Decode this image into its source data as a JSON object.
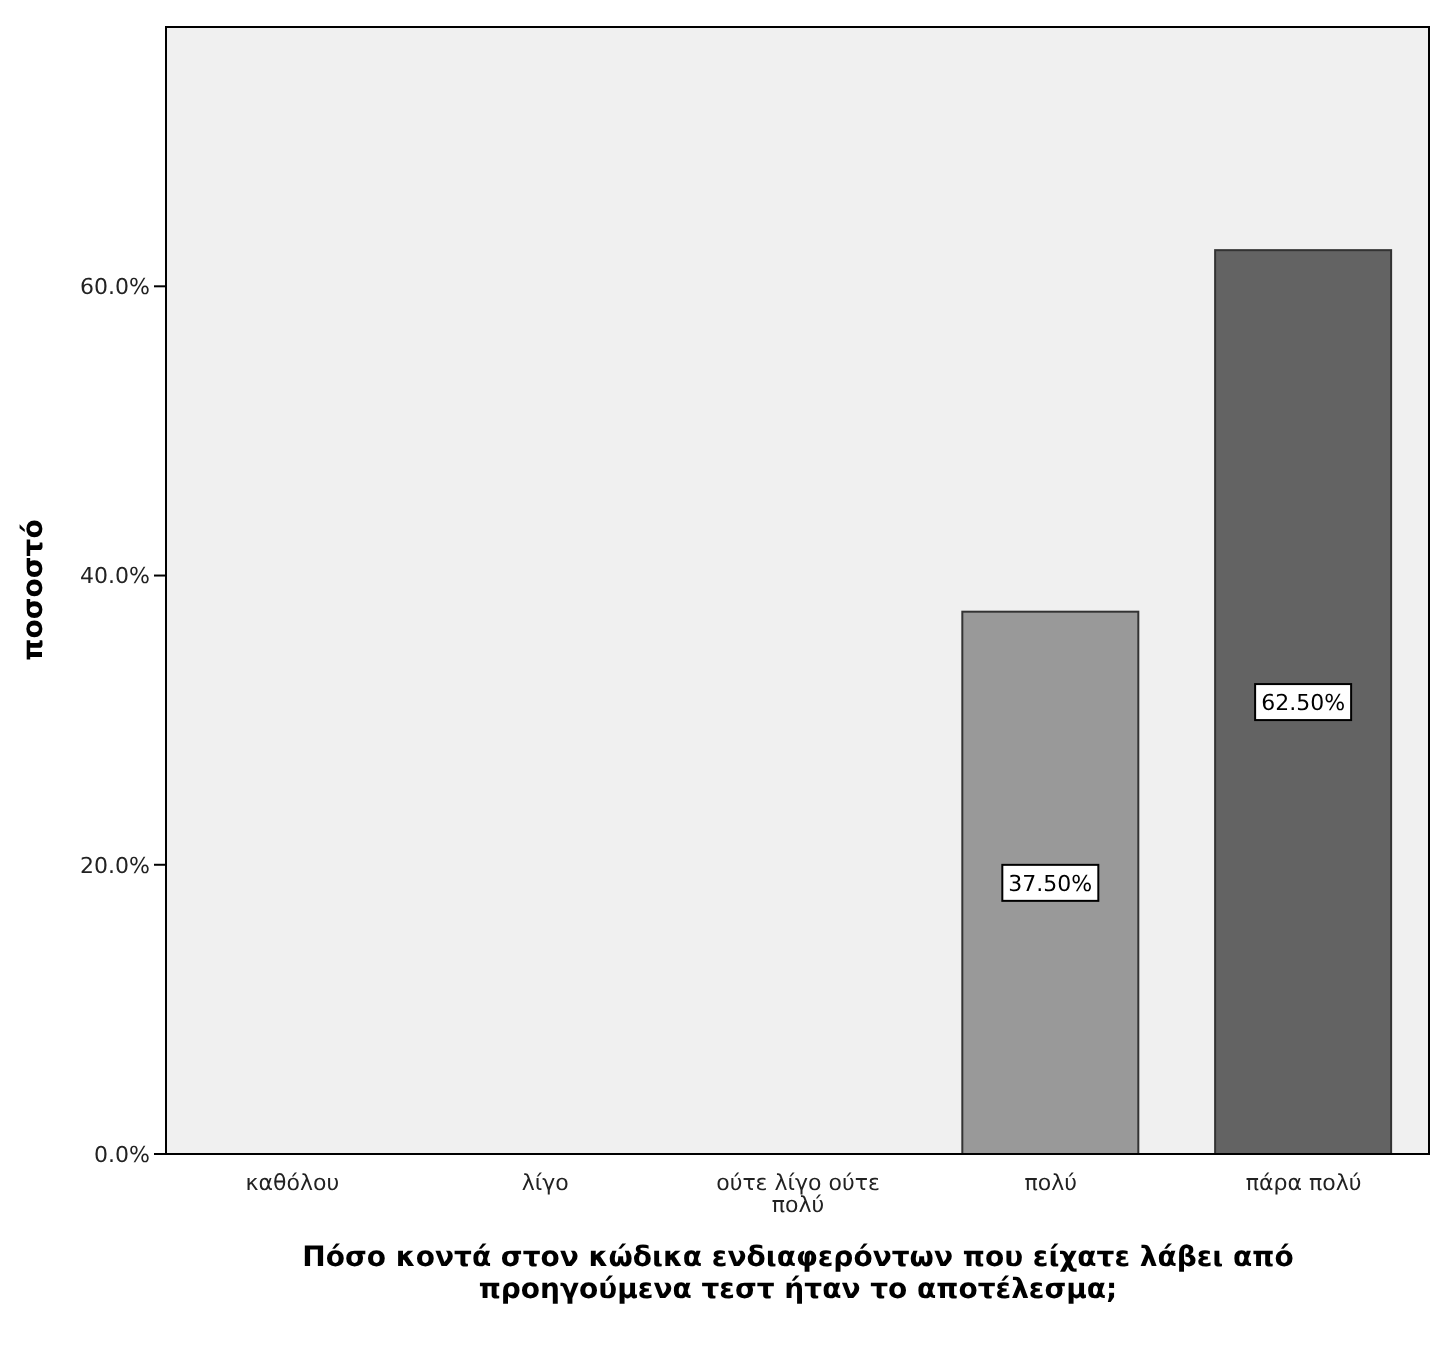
{
  "chart_data": {
    "type": "bar",
    "xlabel": "Πόσο κοντά στον κώδικα ενδιαφερόντων που είχατε λάβει από προηγούμενα τεστ ήταν το αποτέλεσμα;",
    "ylabel": "ποσοστό",
    "categories": [
      "καθόλου",
      "λίγο",
      "ούτε λίγο ούτε πολύ",
      "πολύ",
      "πάρα πολύ"
    ],
    "values": [
      0,
      0,
      0,
      37.5,
      62.5
    ],
    "colors": [
      "#999999",
      "#999999",
      "#999999",
      "#999999",
      "#636363"
    ],
    "value_labels": [
      null,
      null,
      null,
      "37.50%",
      "62.50%"
    ],
    "ylim": [
      0,
      78
    ],
    "yticks": [
      {
        "value": 0,
        "label": "0.0%"
      },
      {
        "value": 20,
        "label": "20.0%"
      },
      {
        "value": 40,
        "label": "40.0%"
      },
      {
        "value": 60,
        "label": "60.0%"
      }
    ],
    "grid": false
  }
}
